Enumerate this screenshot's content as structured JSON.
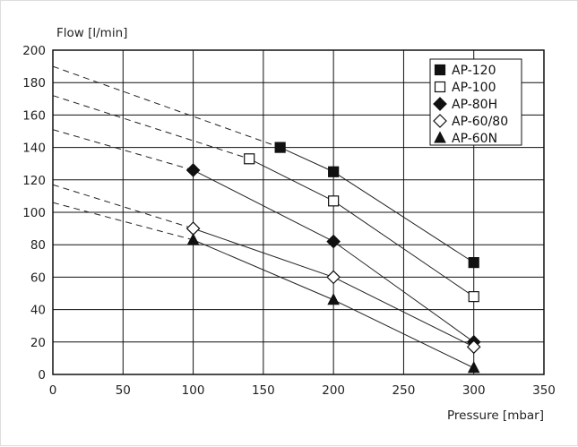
{
  "chart_data": {
    "type": "line",
    "xlabel": "Pressure [mbar]",
    "ylabel": "Flow [l/min]",
    "xlim": [
      0,
      350
    ],
    "ylim": [
      0,
      200
    ],
    "xticks": [
      0,
      50,
      100,
      150,
      200,
      250,
      300,
      350
    ],
    "yticks": [
      0,
      20,
      40,
      60,
      80,
      100,
      120,
      140,
      160,
      180,
      200
    ],
    "grid": true,
    "legend_position": "top-right",
    "series": [
      {
        "name": "AP-120",
        "marker": "filled-square",
        "points": [
          [
            162,
            140
          ],
          [
            200,
            125
          ],
          [
            300,
            69
          ]
        ],
        "extrapolated_from": [
          0,
          190
        ]
      },
      {
        "name": "AP-100",
        "marker": "open-square",
        "points": [
          [
            140,
            133
          ],
          [
            200,
            107
          ],
          [
            300,
            48
          ]
        ],
        "extrapolated_from": [
          0,
          172
        ]
      },
      {
        "name": "AP-80H",
        "marker": "filled-diamond",
        "points": [
          [
            100,
            126
          ],
          [
            200,
            82
          ],
          [
            300,
            20
          ]
        ],
        "extrapolated_from": [
          0,
          151
        ]
      },
      {
        "name": "AP-60/80",
        "marker": "open-diamond",
        "points": [
          [
            100,
            90
          ],
          [
            200,
            60
          ],
          [
            300,
            17
          ]
        ],
        "extrapolated_from": [
          0,
          117
        ]
      },
      {
        "name": "AP-60N",
        "marker": "filled-triangle",
        "points": [
          [
            100,
            83
          ],
          [
            200,
            46
          ],
          [
            300,
            4
          ]
        ],
        "extrapolated_from": [
          0,
          106
        ]
      }
    ]
  }
}
